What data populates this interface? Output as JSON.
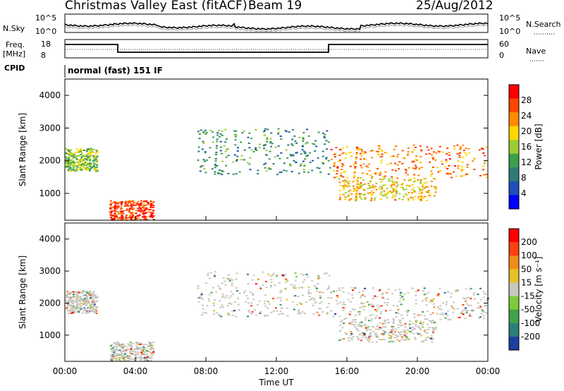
{
  "header": {
    "title": "Christmas Valley East (fitACF)",
    "beam": "Beam 19",
    "date": "25/Aug/2012"
  },
  "top_panels": {
    "nsky_label": "N.Sky",
    "nsky_ticks": [
      "10^5",
      "10^0"
    ],
    "nsearch_label": "N.Search",
    "nsearch_ticks": [
      "10^5",
      "10^0"
    ],
    "freq_label": "Freq.",
    "freq_unit": "[MHz]",
    "freq_ticks": [
      "18",
      "8"
    ],
    "nave_label": "Nave",
    "nave_ticks": [
      "60",
      "0"
    ],
    "cpid_label": "CPID",
    "cpid_value": "normal (fast) 151 IF"
  },
  "chart_data": [
    {
      "type": "heatmap",
      "name": "power",
      "ylabel": "Slant Range [km]",
      "yticks": [
        1000,
        2000,
        3000,
        4000
      ],
      "ylim": [
        180,
        4500
      ],
      "xlim": [
        0,
        24
      ],
      "colorbar": {
        "label": "Power [dB]",
        "ticks": [
          4,
          8,
          12,
          16,
          20,
          24,
          28
        ],
        "colors": [
          "#0000ff",
          "#1f4fb8",
          "#2f7a78",
          "#3aa04c",
          "#9acd32",
          "#ffd700",
          "#ff8c00",
          "#ff4500",
          "#ff0000"
        ]
      },
      "regions": [
        {
          "t": [
            0.0,
            1.8
          ],
          "r": [
            1700,
            2400
          ],
          "level": 14
        },
        {
          "t": [
            2.5,
            5.0
          ],
          "r": [
            200,
            800
          ],
          "level": 26
        },
        {
          "t": [
            7.5,
            15.0
          ],
          "r": [
            1600,
            3000
          ],
          "level": 9
        },
        {
          "t": [
            15.0,
            24.0
          ],
          "r": [
            1500,
            2500
          ],
          "level": 22
        },
        {
          "t": [
            15.5,
            21.0
          ],
          "r": [
            800,
            1500
          ],
          "level": 18
        }
      ]
    },
    {
      "type": "heatmap",
      "name": "velocity",
      "ylabel": "Slant Range [km]",
      "yticks": [
        1000,
        2000,
        3000,
        4000
      ],
      "ylim": [
        180,
        4500
      ],
      "xlim": [
        0,
        24
      ],
      "colorbar": {
        "label": "Velocity [m s⁻¹]",
        "ticks": [
          "200",
          "100",
          "50",
          "15",
          "-15",
          "-50",
          "-100",
          "-200"
        ],
        "colors": [
          "#1c3fa0",
          "#2e7d7d",
          "#3fa34a",
          "#7ccc3a",
          "#c8c8c0",
          "#e8c02a",
          "#f08c1a",
          "#ff4010",
          "#ff0000"
        ]
      },
      "xticks": [
        "00:00",
        "04:00",
        "08:00",
        "12:00",
        "16:00",
        "20:00",
        "00:00"
      ],
      "xlabel": "Time UT"
    }
  ]
}
